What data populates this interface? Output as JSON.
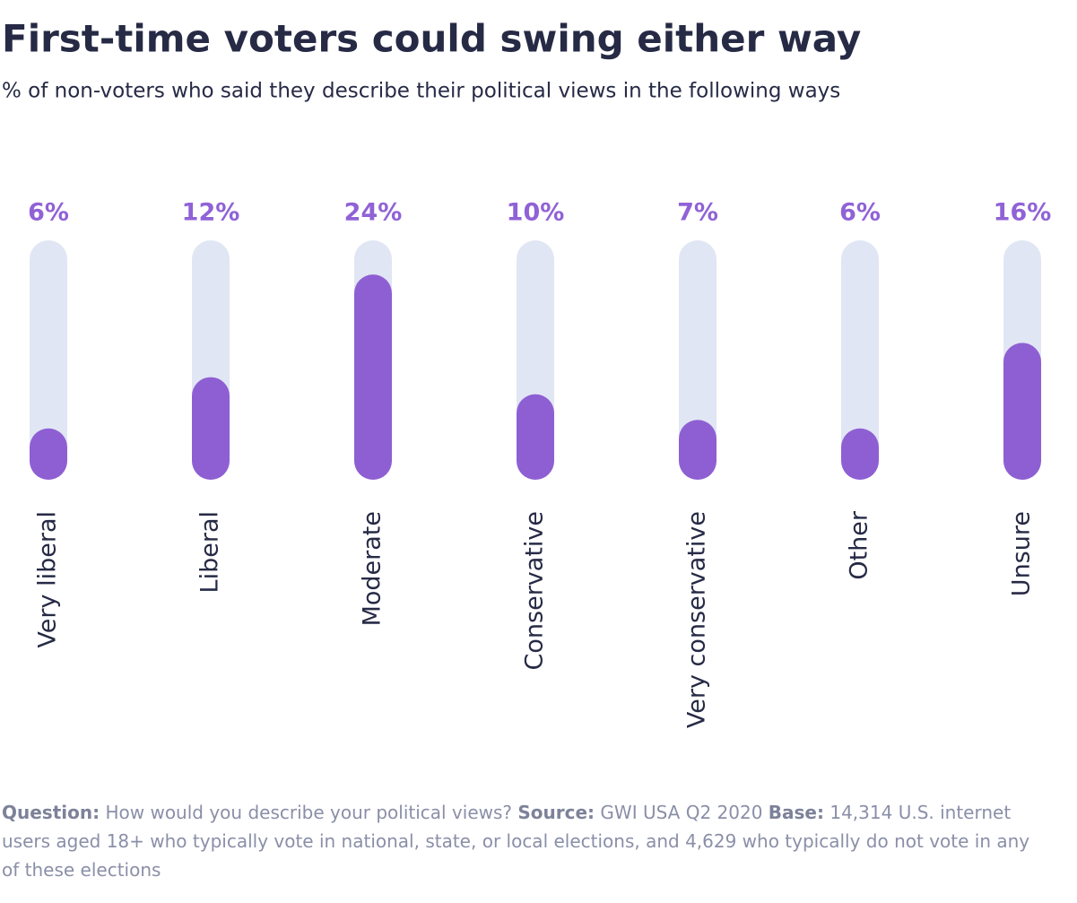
{
  "chart_data": {
    "type": "bar",
    "title": "First-time voters could swing either way",
    "subtitle": "% of non-voters who said they describe their political views in the following ways",
    "categories": [
      "Very liberal",
      "Liberal",
      "Moderate",
      "Conservative",
      "Very conservative",
      "Other",
      "Unsure"
    ],
    "values": [
      6,
      12,
      24,
      10,
      7,
      6,
      16
    ],
    "value_labels": [
      "6%",
      "12%",
      "24%",
      "10%",
      "7%",
      "6%",
      "16%"
    ],
    "color": "#8e5fd3",
    "track_color": "#e1e6f4",
    "ylim": [
      0,
      28
    ]
  },
  "footer": [
    {
      "label": "Question:",
      "text": "How would you describe your political views?"
    },
    {
      "label": "Source:",
      "text": "GWI USA Q2 2020"
    },
    {
      "label": "Base:",
      "text": "14,314 U.S. internet users aged 18+ who typically vote in national, state, or local elections, and 4,629 who typically do not vote in any of these elections"
    }
  ]
}
